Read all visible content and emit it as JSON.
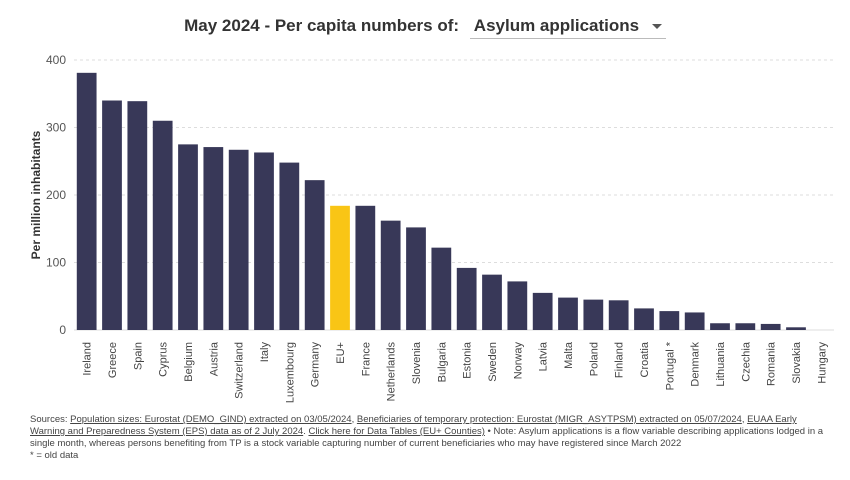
{
  "header": {
    "title_prefix": "May 2024 - Per capita numbers of:",
    "selected_metric": "Asylum applications"
  },
  "chart_data": {
    "type": "bar",
    "ylabel": "Per million inhabitants",
    "ylim": [
      0,
      400
    ],
    "yticks": [
      0,
      100,
      200,
      300,
      400
    ],
    "grid": true,
    "categories": [
      "Ireland",
      "Greece",
      "Spain",
      "Cyprus",
      "Belgium",
      "Austria",
      "Switzerland",
      "Italy",
      "Luxembourg",
      "Germany",
      "EU+",
      "France",
      "Netherlands",
      "Slovenia",
      "Bulgaria",
      "Estonia",
      "Sweden",
      "Norway",
      "Latvia",
      "Malta",
      "Poland",
      "Finland",
      "Croatia",
      "Portugal *",
      "Denmark",
      "Lithuania",
      "Czechia",
      "Romania",
      "Slovakia",
      "Hungary"
    ],
    "values": [
      381,
      340,
      339,
      310,
      275,
      271,
      267,
      263,
      248,
      222,
      184,
      184,
      162,
      152,
      122,
      92,
      82,
      72,
      55,
      48,
      45,
      44,
      32,
      28,
      26,
      10,
      10,
      9,
      4,
      0
    ],
    "highlight": "EU+",
    "colors": {
      "bar": "#383858",
      "highlight": "#f9c515",
      "grid": "#dddddd",
      "text": "#333333"
    }
  },
  "footer": {
    "sources_prefix": "Sources: ",
    "link1": "Population sizes: Eurostat (DEMO_GIND) extracted on 03/05/2024",
    "sep1": ", ",
    "link2": "Beneficiaries of temporary protection: Eurostat (MIGR_ASYTPSM) extracted on 05/07/2024",
    "sep2": ", ",
    "link3": "EUAA Early Warning and Preparedness System (EPS) data as of 2 July 2024",
    "sep3": ". ",
    "link4": "Click here for Data Tables (EU+ Counties)",
    "note": " • Note: Asylum applications is a flow variable describing applications lodged in a single month, whereas persons benefiting from TP is a stock variable capturing number of current beneficiaries who may have registered since March 2022",
    "old_data": "* = old data"
  }
}
